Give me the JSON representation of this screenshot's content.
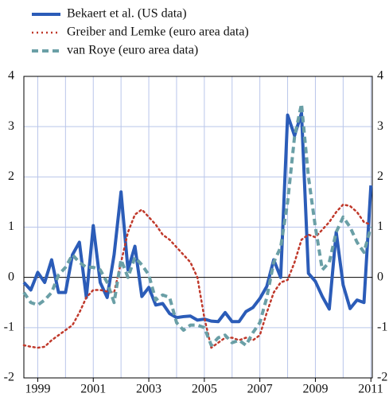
{
  "chart_data": {
    "type": "line",
    "x": [
      1998.5,
      1998.75,
      1999,
      1999.25,
      1999.5,
      1999.75,
      2000,
      2000.25,
      2000.5,
      2000.75,
      2001,
      2001.25,
      2001.5,
      2001.75,
      2002,
      2002.25,
      2002.5,
      2002.75,
      2003,
      2003.25,
      2003.5,
      2003.75,
      2004,
      2004.25,
      2004.5,
      2004.75,
      2005,
      2005.25,
      2005.5,
      2005.75,
      2006,
      2006.25,
      2006.5,
      2006.75,
      2007,
      2007.25,
      2007.5,
      2007.75,
      2008,
      2008.25,
      2008.5,
      2008.75,
      2009,
      2009.25,
      2009.5,
      2009.75,
      2010,
      2010.25,
      2010.5,
      2010.75,
      2011
    ],
    "series": [
      {
        "name": "Bekaert et al. (US data)",
        "color": "#2b5cb8",
        "style": "solid",
        "values": [
          -0.1,
          -0.25,
          0.1,
          -0.1,
          0.35,
          -0.3,
          -0.3,
          0.45,
          0.7,
          -0.4,
          1.03,
          -0.1,
          -0.4,
          0.45,
          1.7,
          0.15,
          0.62,
          -0.38,
          -0.2,
          -0.55,
          -0.52,
          -0.72,
          -0.8,
          -0.78,
          -0.77,
          -0.85,
          -0.83,
          -0.87,
          -0.88,
          -0.7,
          -0.88,
          -0.88,
          -0.68,
          -0.6,
          -0.42,
          -0.18,
          0.35,
          0,
          3.23,
          2.82,
          3.27,
          0.08,
          -0.08,
          -0.38,
          -0.63,
          0.9,
          -0.15,
          -0.62,
          -0.45,
          -0.5,
          1.83
        ]
      },
      {
        "name": "Greiber and Lemke (euro area data)",
        "color": "#c0392b",
        "style": "dotted",
        "values": [
          -1.35,
          -1.38,
          -1.4,
          -1.38,
          -1.25,
          -1.15,
          -1.05,
          -0.95,
          -0.7,
          -0.4,
          -0.25,
          -0.25,
          -0.28,
          -0.3,
          0.3,
          0.9,
          1.25,
          1.35,
          1.2,
          1.05,
          0.85,
          0.75,
          0.6,
          0.45,
          0.3,
          0,
          -0.8,
          -1.4,
          -1.3,
          -1.2,
          -1.2,
          -1.25,
          -1.2,
          -1.25,
          -1.15,
          -0.7,
          -0.3,
          -0.1,
          -0.05,
          0.3,
          0.75,
          0.85,
          0.8,
          0.95,
          1.1,
          1.3,
          1.45,
          1.42,
          1.3,
          1.1,
          1.05
        ]
      },
      {
        "name": "van Roye (euro area data)",
        "color": "#6a9fa6",
        "style": "dashed",
        "values": [
          -0.3,
          -0.5,
          -0.55,
          -0.45,
          -0.3,
          0.05,
          0.2,
          0.45,
          0.3,
          0.2,
          0.2,
          0.15,
          -0.1,
          -0.5,
          0.35,
          0,
          0.4,
          0.25,
          0.05,
          -0.45,
          -0.35,
          -0.4,
          -0.9,
          -1.05,
          -0.95,
          -0.95,
          -1,
          -1.35,
          -1.2,
          -1.15,
          -1.3,
          -1.25,
          -1.35,
          -1.1,
          -0.9,
          -0.4,
          0.3,
          0.6,
          1.5,
          2.8,
          3.45,
          2,
          1,
          0.15,
          0.3,
          0.9,
          1.2,
          1,
          0.7,
          0.5,
          1
        ]
      }
    ],
    "xlim": [
      1998.5,
      2011.05
    ],
    "xticks": [
      1999,
      2001,
      2003,
      2005,
      2007,
      2009,
      2011
    ],
    "xgrid": [
      1999,
      2000,
      2001,
      2002,
      2003,
      2004,
      2005,
      2006,
      2007,
      2008,
      2009,
      2010,
      2011
    ],
    "ylim": [
      -2,
      4
    ],
    "yticks": [
      -2,
      -1,
      0,
      1,
      2,
      3,
      4
    ],
    "grid": true
  }
}
